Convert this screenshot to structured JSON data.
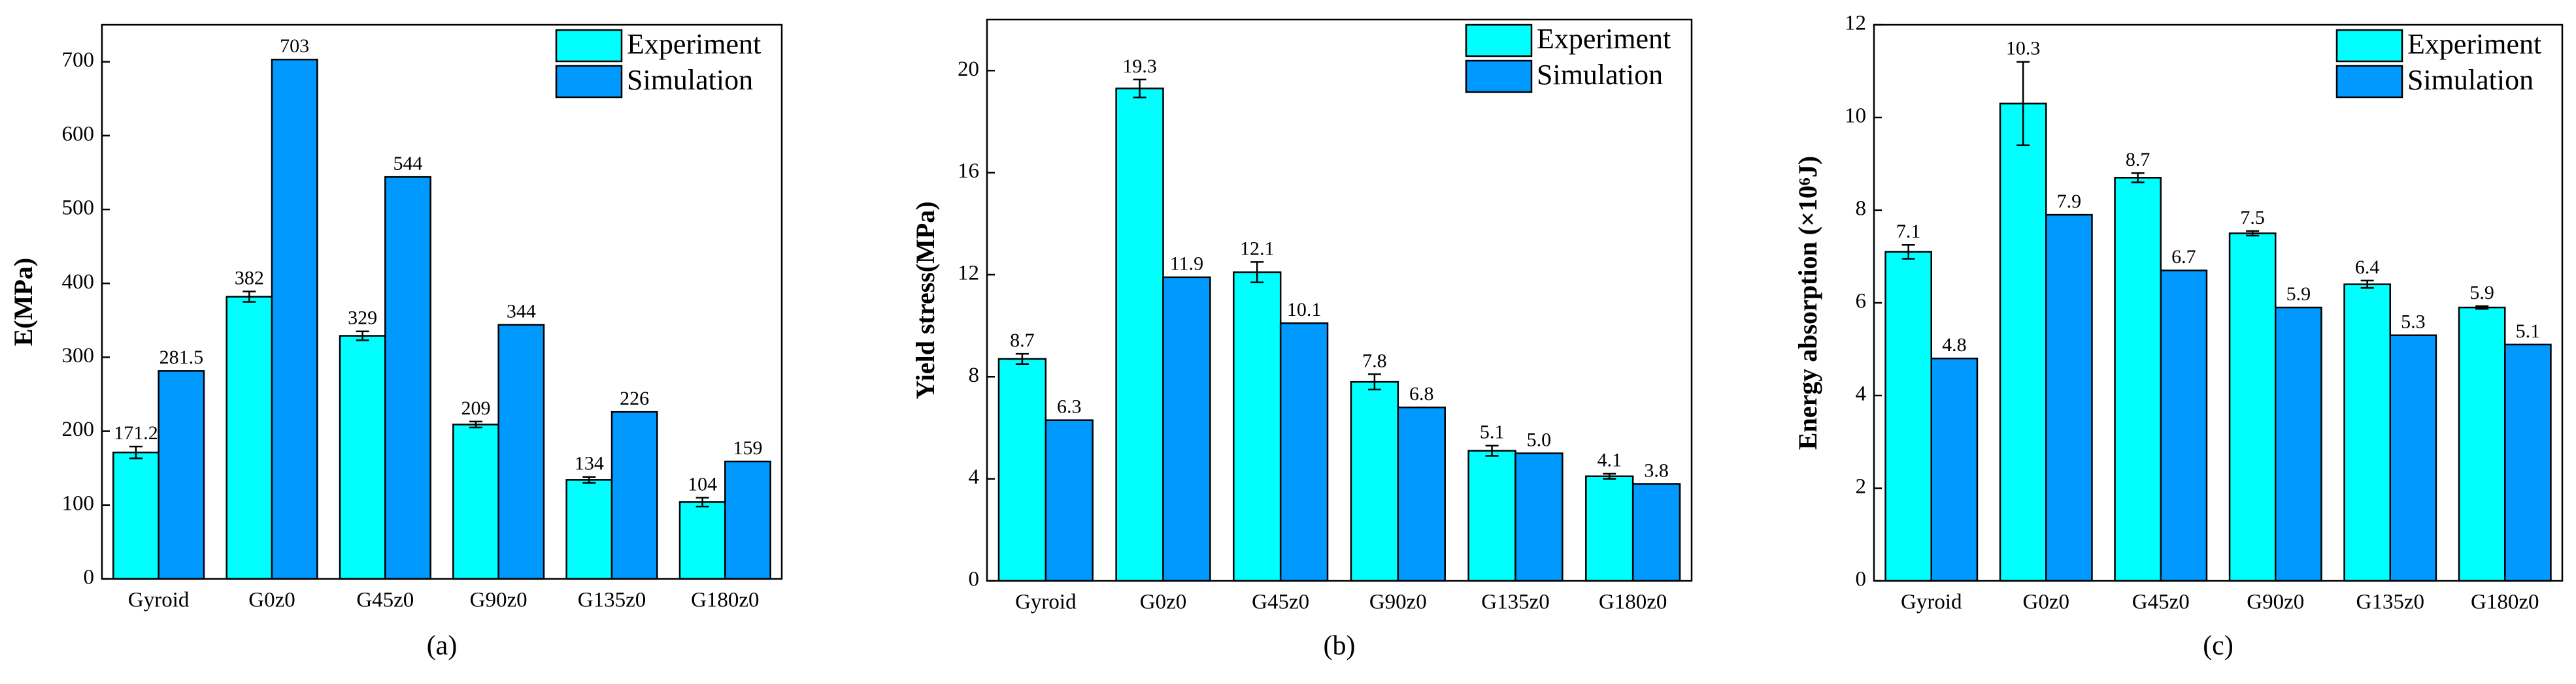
{
  "chart_data": [
    {
      "type": "bar",
      "caption": "(a)",
      "ylabel": "E(MPa)",
      "categories": [
        "Gyroid",
        "G0z0",
        "G45z0",
        "G90z0",
        "G135z0",
        "G180z0"
      ],
      "series": [
        {
          "name": "Experiment",
          "color": "#00ffff",
          "values": [
            171.2,
            382,
            329,
            209,
            134,
            104
          ],
          "value_labels": [
            "171.2",
            "382",
            "329",
            "209",
            "134",
            "104"
          ],
          "errors": [
            8,
            7,
            6,
            4,
            4,
            6
          ]
        },
        {
          "name": "Simulation",
          "color": "#0099ff",
          "values": [
            281.5,
            703,
            544,
            344,
            226,
            159
          ],
          "value_labels": [
            "281.5",
            "703",
            "544",
            "344",
            "226",
            "159"
          ]
        }
      ],
      "ylim": [
        0,
        750
      ],
      "yticks": [
        0,
        100,
        200,
        300,
        400,
        500,
        600,
        700
      ],
      "legend": "upper right"
    },
    {
      "type": "bar",
      "caption": "(b)",
      "ylabel": "Yield stress(MPa)",
      "categories": [
        "Gyroid",
        "G0z0",
        "G45z0",
        "G90z0",
        "G135z0",
        "G180z0"
      ],
      "series": [
        {
          "name": "Experiment",
          "color": "#00ffff",
          "values": [
            8.7,
            19.3,
            12.1,
            7.8,
            5.1,
            4.1
          ],
          "value_labels": [
            "8.7",
            "19.3",
            "12.1",
            "7.8",
            "5.1",
            "4.1"
          ],
          "errors": [
            0.2,
            0.35,
            0.4,
            0.3,
            0.2,
            0.1
          ]
        },
        {
          "name": "Simulation",
          "color": "#0099ff",
          "values": [
            6.3,
            11.9,
            10.1,
            6.8,
            5.0,
            3.8
          ],
          "value_labels": [
            "6.3",
            "11.9",
            "10.1",
            "6.8",
            "5.0",
            "3.8"
          ]
        }
      ],
      "ylim": [
        0,
        22
      ],
      "yticks": [
        0,
        4,
        8,
        12,
        16,
        20
      ],
      "legend": "upper right"
    },
    {
      "type": "bar",
      "caption": "(c)",
      "ylabel": "Energy absorption (×10⁶J)",
      "categories": [
        "Gyroid",
        "G0z0",
        "G45z0",
        "G90z0",
        "G135z0",
        "G180z0"
      ],
      "series": [
        {
          "name": "Experiment",
          "color": "#00ffff",
          "values": [
            7.1,
            10.3,
            8.7,
            7.5,
            6.4,
            5.9
          ],
          "value_labels": [
            "7.1",
            "10.3",
            "8.7",
            "7.5",
            "6.4",
            "5.9"
          ],
          "errors": [
            0.15,
            0.9,
            0.1,
            0.05,
            0.08,
            0.03
          ]
        },
        {
          "name": "Simulation",
          "color": "#0099ff",
          "values": [
            4.8,
            7.9,
            6.7,
            5.9,
            5.3,
            5.1
          ],
          "value_labels": [
            "4.8",
            "7.9",
            "6.7",
            "5.9",
            "5.3",
            "5.1"
          ]
        }
      ],
      "ylim": [
        0,
        12
      ],
      "yticks": [
        0,
        2,
        4,
        6,
        8,
        10,
        12
      ],
      "legend": "upper right"
    }
  ]
}
